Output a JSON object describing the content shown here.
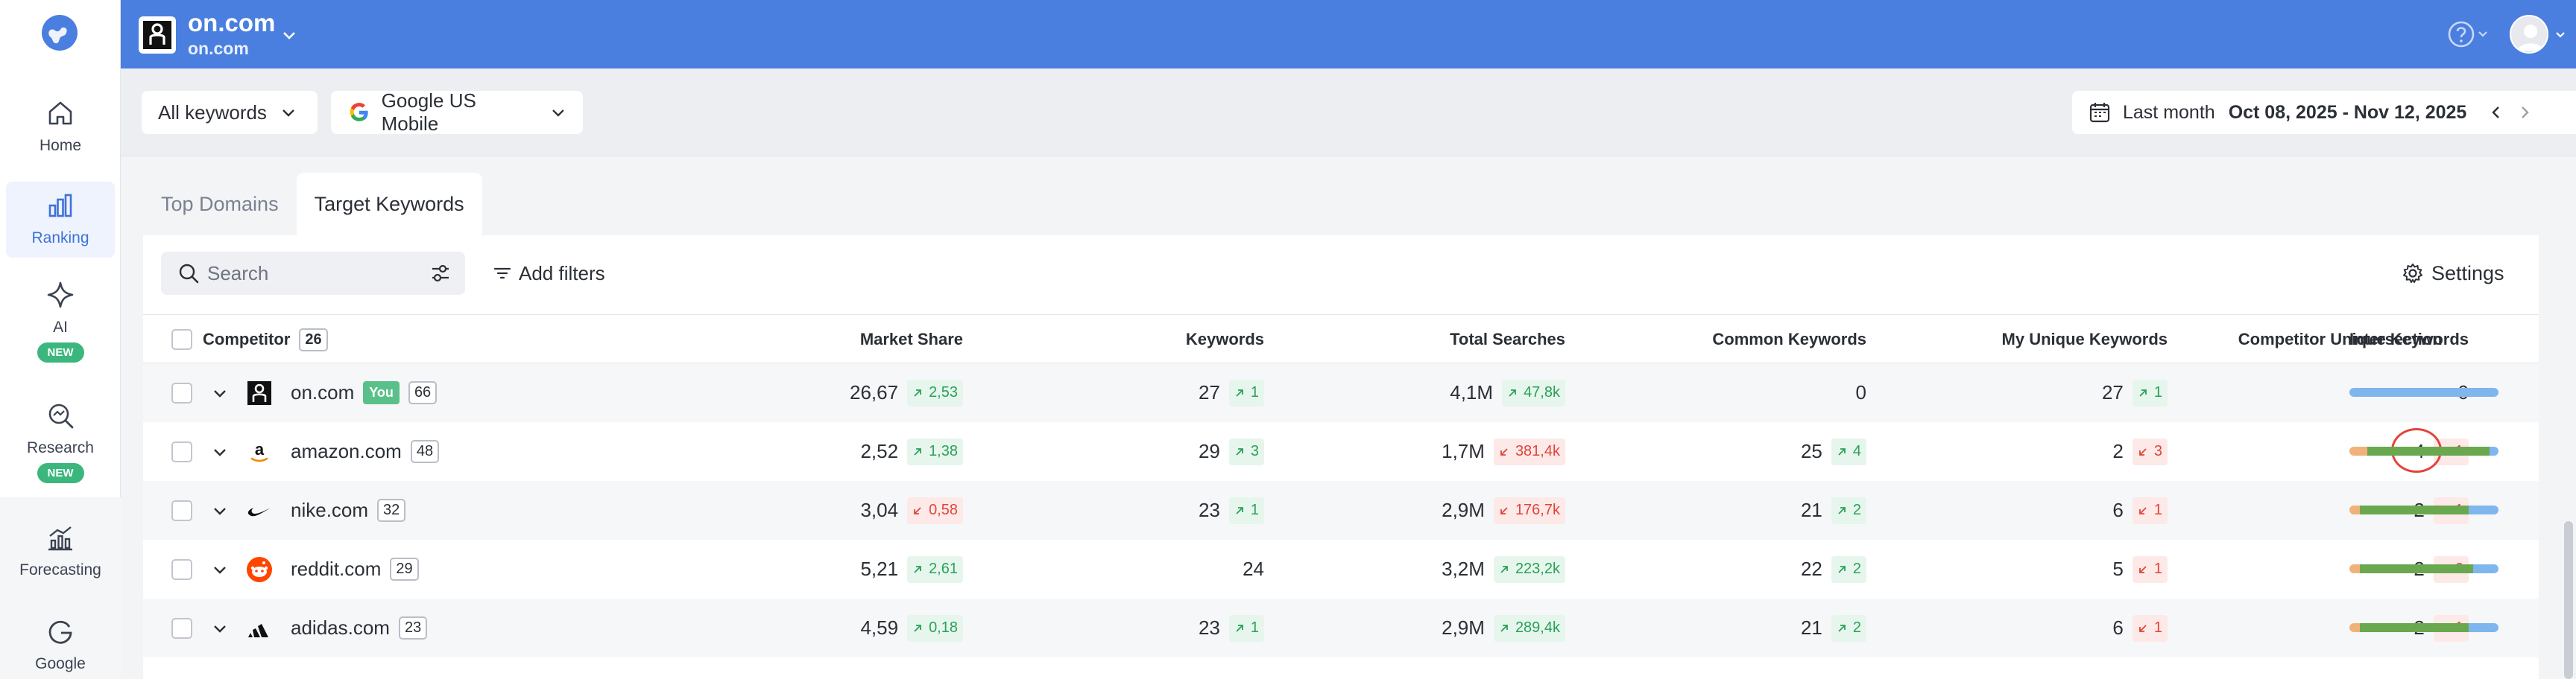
{
  "colors": {
    "accent": "#4a7fe0",
    "up": "#2aa05a",
    "down": "#e0453a",
    "bar_orange": "#f0b27a",
    "bar_green": "#6aa84f",
    "bar_blue": "#7fb6ee"
  },
  "sidebar": {
    "items": [
      {
        "label": "Home",
        "icon": "home-icon"
      },
      {
        "label": "Ranking",
        "icon": "ranking-icon",
        "active": true
      },
      {
        "label": "AI",
        "icon": "sparkle-icon",
        "badge": "NEW"
      },
      {
        "label": "Research",
        "icon": "research-icon",
        "badge": "NEW"
      },
      {
        "label": "Forecasting",
        "icon": "forecasting-icon"
      },
      {
        "label": "Google",
        "icon": "google-icon"
      }
    ]
  },
  "header": {
    "project_title": "on.com",
    "project_subtitle": "on.com"
  },
  "filters": {
    "keywords_dropdown": "All keywords",
    "engine_dropdown": "Google US Mobile",
    "date_label": "Last month",
    "date_range": "Oct 08, 2025 - Nov 12, 2025"
  },
  "tabs": [
    {
      "label": "Top Domains"
    },
    {
      "label": "Target Keywords",
      "active": true
    }
  ],
  "toolbar": {
    "search_placeholder": "Search",
    "add_filters": "Add filters",
    "settings": "Settings"
  },
  "table": {
    "headers": {
      "competitor": "Competitor",
      "competitor_count": "26",
      "market_share": "Market Share",
      "keywords": "Keywords",
      "total_searches": "Total Searches",
      "common_keywords": "Common Keywords",
      "my_unique": "My Unique Keywords",
      "comp_unique": "Competitor Unique Keywords",
      "intersection": "Intersection"
    },
    "rows": [
      {
        "domain": "on.com",
        "you": "You",
        "count": "66",
        "market_share": "26,67",
        "ms_delta": "2,53",
        "ms_dir": "up",
        "keywords": "27",
        "kw_delta": "1",
        "kw_dir": "up",
        "searches": "4,1M",
        "s_delta": "47,8k",
        "s_dir": "up",
        "common": "0",
        "common_delta": "",
        "common_dir": "",
        "my_unique": "27",
        "mu_delta": "1",
        "mu_dir": "up",
        "comp_unique": "0",
        "cu_delta": "",
        "cu_dir": "",
        "bar": [
          0,
          0,
          1
        ],
        "favicon": "on-logo-icon"
      },
      {
        "domain": "amazon.com",
        "count": "48",
        "market_share": "2,52",
        "ms_delta": "1,38",
        "ms_dir": "up",
        "keywords": "29",
        "kw_delta": "3",
        "kw_dir": "up",
        "searches": "1,7M",
        "s_delta": "381,4k",
        "s_dir": "down",
        "common": "25",
        "common_delta": "4",
        "common_dir": "up",
        "my_unique": "2",
        "mu_delta": "3",
        "mu_dir": "down",
        "comp_unique": "4",
        "cu_delta": "1",
        "cu_dir": "down",
        "bar": [
          0.12,
          0.82,
          0.06
        ],
        "favicon": "amazon-icon",
        "highlight": true
      },
      {
        "domain": "nike.com",
        "count": "32",
        "market_share": "3,04",
        "ms_delta": "0,58",
        "ms_dir": "down",
        "keywords": "23",
        "kw_delta": "1",
        "kw_dir": "up",
        "searches": "2,9M",
        "s_delta": "176,7k",
        "s_dir": "down",
        "common": "21",
        "common_delta": "2",
        "common_dir": "up",
        "my_unique": "6",
        "mu_delta": "1",
        "mu_dir": "down",
        "comp_unique": "2",
        "cu_delta": "1",
        "cu_dir": "down",
        "bar": [
          0.07,
          0.73,
          0.2
        ],
        "favicon": "nike-icon"
      },
      {
        "domain": "reddit.com",
        "count": "29",
        "market_share": "5,21",
        "ms_delta": "2,61",
        "ms_dir": "up",
        "keywords": "24",
        "kw_delta": "",
        "kw_dir": "",
        "searches": "3,2M",
        "s_delta": "223,2k",
        "s_dir": "up",
        "common": "22",
        "common_delta": "2",
        "common_dir": "up",
        "my_unique": "5",
        "mu_delta": "1",
        "mu_dir": "down",
        "comp_unique": "2",
        "cu_delta": "2",
        "cu_dir": "down",
        "bar": [
          0.07,
          0.76,
          0.17
        ],
        "favicon": "reddit-icon"
      },
      {
        "domain": "adidas.com",
        "count": "23",
        "market_share": "4,59",
        "ms_delta": "0,18",
        "ms_dir": "up",
        "keywords": "23",
        "kw_delta": "1",
        "kw_dir": "up",
        "searches": "2,9M",
        "s_delta": "289,4k",
        "s_dir": "up",
        "common": "21",
        "common_delta": "2",
        "common_dir": "up",
        "my_unique": "6",
        "mu_delta": "1",
        "mu_dir": "down",
        "comp_unique": "2",
        "cu_delta": "1",
        "cu_dir": "down",
        "bar": [
          0.07,
          0.73,
          0.2
        ],
        "favicon": "adidas-icon"
      }
    ]
  }
}
